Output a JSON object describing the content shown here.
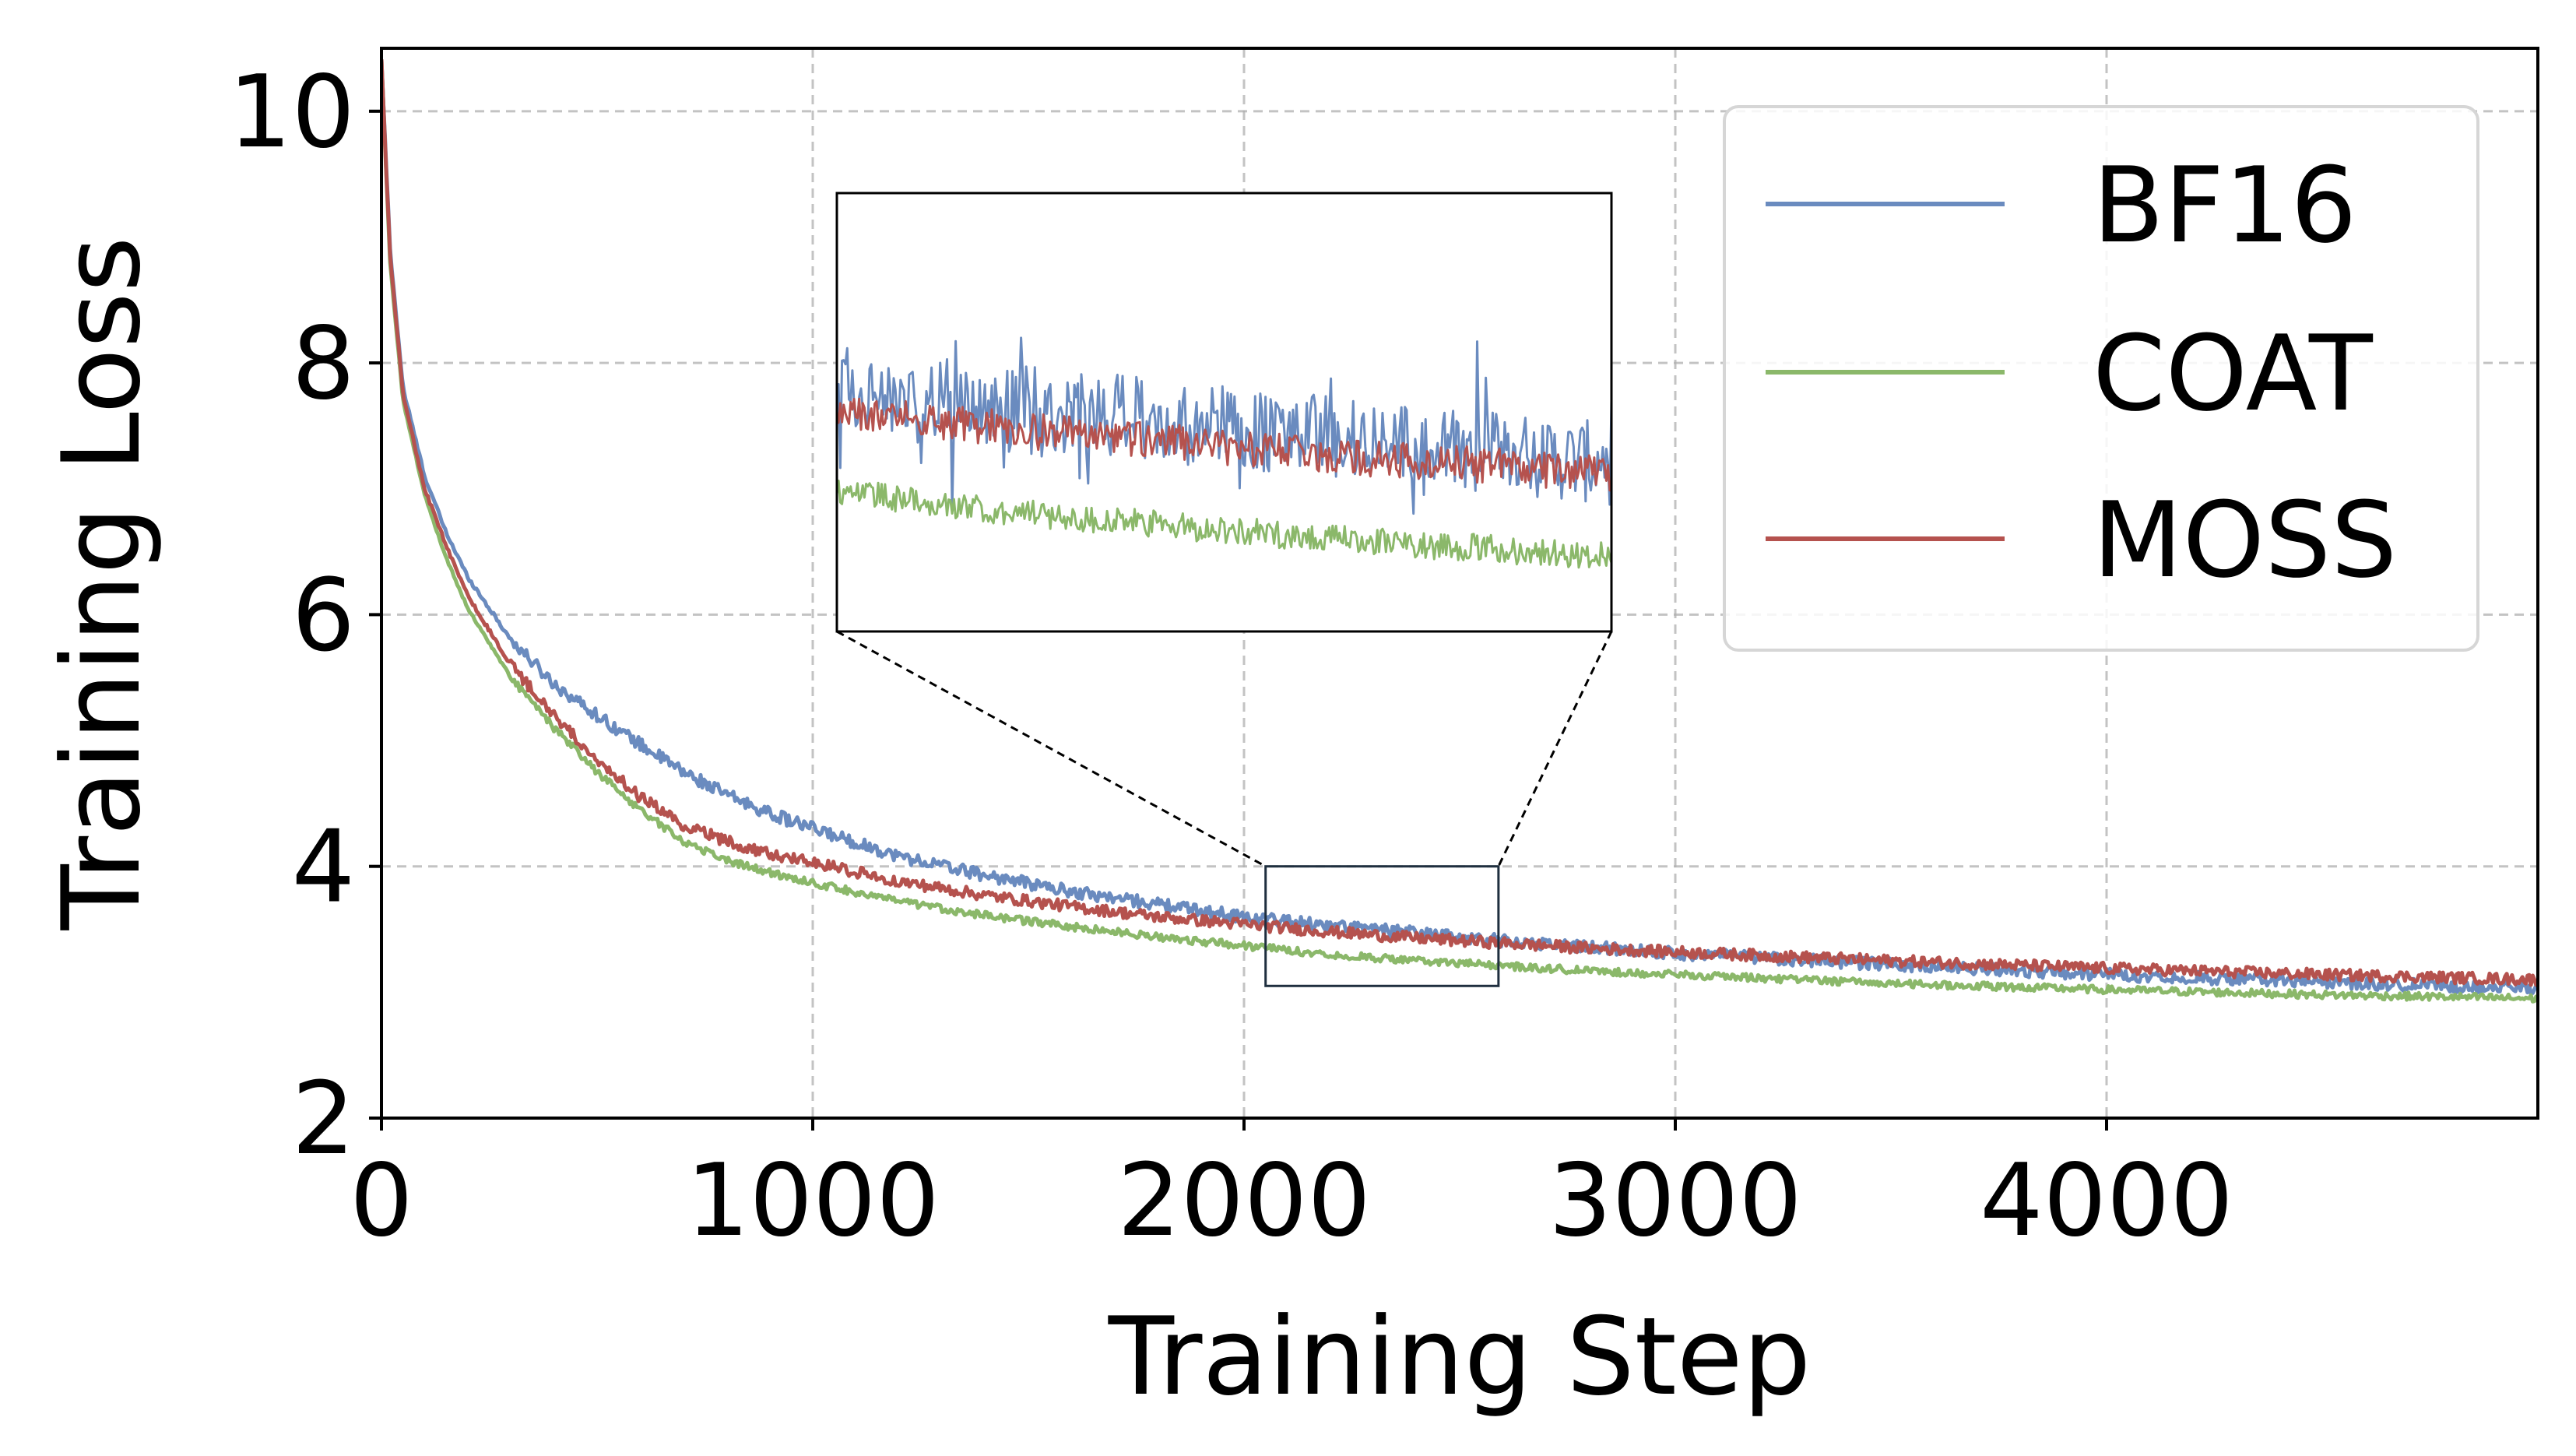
{
  "chart_data": {
    "type": "line",
    "xlabel": "Training Step",
    "ylabel": "Training Loss",
    "xlim": [
      0,
      5000
    ],
    "ylim": [
      2,
      10.5
    ],
    "xticks": [
      0,
      1000,
      2000,
      3000,
      4000
    ],
    "yticks": [
      2,
      4,
      6,
      8,
      10
    ],
    "grid": true,
    "legend_position": "upper right",
    "series": [
      {
        "name": "BF16",
        "color": "#6a8bbf",
        "x": [
          0,
          20,
          50,
          100,
          150,
          200,
          300,
          400,
          500,
          600,
          700,
          800,
          900,
          1000,
          1200,
          1400,
          1600,
          1800,
          2000,
          2200,
          2400,
          2600,
          2800,
          3000,
          3500,
          4000,
          4500,
          5000
        ],
        "y": [
          10.4,
          8.9,
          7.8,
          7.1,
          6.65,
          6.3,
          5.8,
          5.45,
          5.2,
          4.97,
          4.75,
          4.57,
          4.42,
          4.3,
          4.08,
          3.93,
          3.8,
          3.7,
          3.6,
          3.53,
          3.47,
          3.41,
          3.36,
          3.31,
          3.22,
          3.14,
          3.08,
          3.03
        ]
      },
      {
        "name": "COAT",
        "color": "#8bb86a",
        "x": [
          0,
          20,
          50,
          100,
          150,
          200,
          300,
          400,
          500,
          600,
          700,
          800,
          900,
          1000,
          1200,
          1400,
          1600,
          1800,
          2000,
          2200,
          2400,
          2600,
          2800,
          3000,
          3500,
          4000,
          4500,
          5000
        ],
        "y": [
          10.4,
          8.8,
          7.7,
          6.95,
          6.45,
          6.05,
          5.5,
          5.1,
          4.75,
          4.45,
          4.2,
          4.05,
          3.95,
          3.87,
          3.72,
          3.61,
          3.52,
          3.44,
          3.37,
          3.3,
          3.25,
          3.21,
          3.17,
          3.14,
          3.07,
          3.02,
          2.98,
          2.95
        ]
      },
      {
        "name": "MOSS",
        "color": "#b5524e",
        "x": [
          0,
          20,
          50,
          100,
          150,
          200,
          300,
          400,
          500,
          600,
          700,
          800,
          900,
          1000,
          1200,
          1400,
          1600,
          1800,
          2000,
          2200,
          2400,
          2600,
          2800,
          3000,
          3500,
          4000,
          4500,
          5000
        ],
        "y": [
          10.4,
          8.85,
          7.75,
          7.0,
          6.55,
          6.15,
          5.6,
          5.2,
          4.85,
          4.55,
          4.33,
          4.2,
          4.1,
          4.03,
          3.88,
          3.77,
          3.68,
          3.6,
          3.54,
          3.48,
          3.43,
          3.39,
          3.35,
          3.32,
          3.25,
          3.19,
          3.14,
          3.1
        ]
      }
    ],
    "noise": {
      "BF16": 0.05,
      "COAT": 0.03,
      "MOSS": 0.045
    },
    "inset": {
      "x_range": [
        2050,
        2590
      ],
      "y_range": [
        3.05,
        4.0
      ],
      "noise": {
        "BF16": 0.09,
        "COAT": 0.03,
        "MOSS": 0.04
      }
    }
  }
}
